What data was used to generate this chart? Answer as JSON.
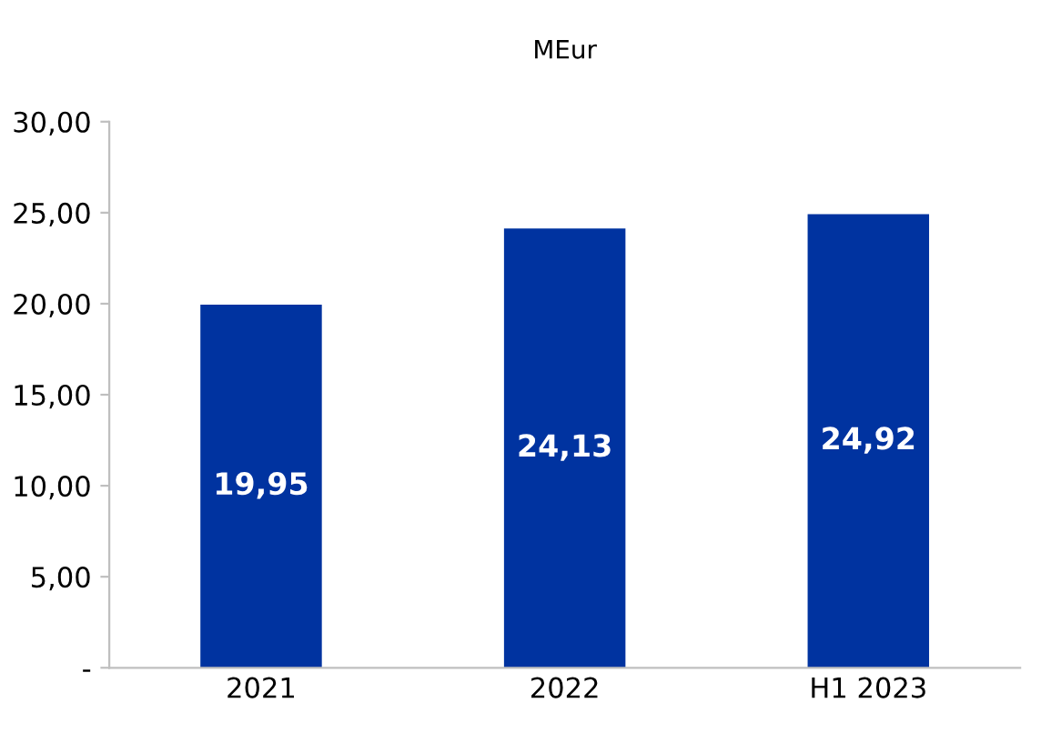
{
  "chart_data": {
    "type": "bar",
    "title": "MEur",
    "categories": [
      "2021",
      "2022",
      "H1 2023"
    ],
    "values": [
      19.95,
      24.13,
      24.92
    ],
    "value_labels": [
      "19,95",
      "24,13",
      "24,92"
    ],
    "color": "#0033a0",
    "ylim": [
      0,
      30
    ],
    "yticks": [
      {
        "value": 0,
        "label": "-"
      },
      {
        "value": 5,
        "label": "5,00"
      },
      {
        "value": 10,
        "label": "10,00"
      },
      {
        "value": 15,
        "label": "15,00"
      },
      {
        "value": 20,
        "label": "20,00"
      },
      {
        "value": 25,
        "label": "25,00"
      },
      {
        "value": 30,
        "label": "30,00"
      }
    ],
    "grid": false,
    "legend": false
  }
}
